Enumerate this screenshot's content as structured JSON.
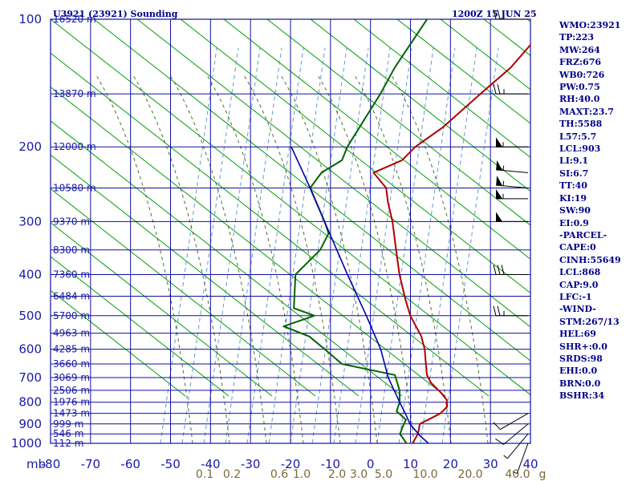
{
  "header": {
    "station": "U3921 (23921) Sounding",
    "time": "1200Z 15 JUN 25"
  },
  "colors": {
    "axes": "#1010a0",
    "temperature": "#b00000",
    "dewpoint": "#006400",
    "parcel": "#0000b0",
    "dry_adiabat": "#00a000",
    "moist_adiabat": "#888888",
    "mixing_ratio": "#6699cc",
    "dry_adiabat_dash": "#556b2f"
  },
  "indices": [
    "WMO:23921",
    "TP:223",
    "MW:264",
    "FRZ:676",
    "WB0:726",
    "PW:0.75",
    "RH:40.0",
    "MAXT:23.7",
    "TH:5588",
    "L57:5.7",
    "LCL:903",
    "LI:9.1",
    "SI:6.7",
    "TT:40",
    "KI:19",
    "SW:90",
    "EI:0.9",
    "-PARCEL-",
    "CAPE:0",
    "CINH:55649",
    "LCL:868",
    "CAP:9.0",
    "LFC:-1",
    "-WIND-",
    "STM:267/13",
    "HEL:69",
    "SHR+:0.0",
    "SRDS:98",
    "EHI:0.0",
    "BRN:0.0",
    "BSHR:34"
  ],
  "chart_data": {
    "type": "line",
    "title": "U3921 (23921) Sounding",
    "y_axis": {
      "label": "mb",
      "scale": "log",
      "range": [
        1000,
        100
      ],
      "ticks": [
        100,
        200,
        300,
        400,
        500,
        600,
        700,
        800,
        900,
        1000
      ]
    },
    "x_axis": {
      "range": [
        -80,
        40
      ],
      "ticks": [
        -80,
        -70,
        -60,
        -50,
        -40,
        -30,
        -20,
        -10,
        0,
        10,
        20,
        30,
        40
      ]
    },
    "mixing_ratio_ticks": [
      {
        "label": "0.1",
        "value": 0.1
      },
      {
        "label": "0.2",
        "value": 0.2
      },
      {
        "label": "0.6",
        "value": 0.6
      },
      {
        "label": "1.0",
        "value": 1.0
      },
      {
        "label": "2.0",
        "value": 2.0
      },
      {
        "label": "3.0",
        "value": 3.0
      },
      {
        "label": "5.0",
        "value": 5.0
      },
      {
        "label": "10.0",
        "value": 10.0
      },
      {
        "label": "20.0",
        "value": 20.0
      },
      {
        "label": "40.0",
        "value": 40.0
      }
    ],
    "mixing_ratio_unit": "g",
    "height_labels": [
      {
        "p": 100,
        "label": "16520 m"
      },
      {
        "p": 150,
        "label": "13870 m"
      },
      {
        "p": 200,
        "label": "12000 m"
      },
      {
        "p": 250,
        "label": "10580 m"
      },
      {
        "p": 300,
        "label": "9370 m"
      },
      {
        "p": 350,
        "label": "8300 m"
      },
      {
        "p": 400,
        "label": "7360 m"
      },
      {
        "p": 450,
        "label": "6484 m"
      },
      {
        "p": 500,
        "label": "5700 m"
      },
      {
        "p": 550,
        "label": "4963 m"
      },
      {
        "p": 600,
        "label": "4285 m"
      },
      {
        "p": 650,
        "label": "3660 m"
      },
      {
        "p": 700,
        "label": "3069 m"
      },
      {
        "p": 750,
        "label": "2506 m"
      },
      {
        "p": 800,
        "label": "1976 m"
      },
      {
        "p": 850,
        "label": "1473 m"
      },
      {
        "p": 900,
        "label": "999 m"
      },
      {
        "p": 950,
        "label": "546 m"
      },
      {
        "p": 1000,
        "label": "112 m"
      }
    ],
    "series": [
      {
        "key": "temperature",
        "points": [
          {
            "p": 1000,
            "t": 10.5
          },
          {
            "p": 950,
            "t": 9.5
          },
          {
            "p": 900,
            "t": 7.5
          },
          {
            "p": 850,
            "t": 10
          },
          {
            "p": 820,
            "t": 10
          },
          {
            "p": 790,
            "t": 8.2
          },
          {
            "p": 760,
            "t": 5
          },
          {
            "p": 720,
            "t": 0
          },
          {
            "p": 690,
            "t": -3
          },
          {
            "p": 650,
            "t": -6
          },
          {
            "p": 600,
            "t": -10
          },
          {
            "p": 560,
            "t": -14
          },
          {
            "p": 500,
            "t": -22
          },
          {
            "p": 460,
            "t": -27
          },
          {
            "p": 400,
            "t": -35
          },
          {
            "p": 350,
            "t": -42
          },
          {
            "p": 300,
            "t": -50
          },
          {
            "p": 270,
            "t": -56
          },
          {
            "p": 250,
            "t": -60
          },
          {
            "p": 230,
            "t": -67
          },
          {
            "p": 215,
            "t": -63
          },
          {
            "p": 200,
            "t": -63
          },
          {
            "p": 180,
            "t": -61
          },
          {
            "p": 150,
            "t": -60
          },
          {
            "p": 130,
            "t": -59
          },
          {
            "p": 110,
            "t": -60
          },
          {
            "p": 100,
            "t": -60
          }
        ]
      },
      {
        "key": "dewpoint",
        "points": [
          {
            "p": 1000,
            "t": 9
          },
          {
            "p": 950,
            "t": 5
          },
          {
            "p": 900,
            "t": 3.5
          },
          {
            "p": 880,
            "t": 3
          },
          {
            "p": 840,
            "t": -1.5
          },
          {
            "p": 800,
            "t": -3
          },
          {
            "p": 750,
            "t": -6
          },
          {
            "p": 690,
            "t": -11
          },
          {
            "p": 650,
            "t": -27
          },
          {
            "p": 600,
            "t": -35
          },
          {
            "p": 560,
            "t": -42
          },
          {
            "p": 530,
            "t": -51
          },
          {
            "p": 500,
            "t": -46
          },
          {
            "p": 480,
            "t": -53
          },
          {
            "p": 400,
            "t": -61
          },
          {
            "p": 380,
            "t": -61
          },
          {
            "p": 350,
            "t": -61
          },
          {
            "p": 320,
            "t": -63
          },
          {
            "p": 300,
            "t": -67
          },
          {
            "p": 250,
            "t": -79
          },
          {
            "p": 230,
            "t": -80
          },
          {
            "p": 215,
            "t": -78
          },
          {
            "p": 200,
            "t": -80
          },
          {
            "p": 150,
            "t": -85
          },
          {
            "p": 130,
            "t": -88
          },
          {
            "p": 100,
            "t": -92
          }
        ]
      },
      {
        "key": "parcel",
        "points": [
          {
            "p": 1000,
            "t": 14.5
          },
          {
            "p": 960,
            "t": 10.5
          },
          {
            "p": 900,
            "t": 5
          },
          {
            "p": 860,
            "t": 2
          },
          {
            "p": 800,
            "t": -3
          },
          {
            "p": 700,
            "t": -12
          },
          {
            "p": 600,
            "t": -21
          },
          {
            "p": 500,
            "t": -33
          },
          {
            "p": 400,
            "t": -48
          },
          {
            "p": 300,
            "t": -67
          },
          {
            "p": 250,
            "t": -79
          },
          {
            "p": 200,
            "t": -94
          }
        ]
      }
    ],
    "wind_barbs": [
      {
        "p": 100,
        "dir": 270,
        "spd": 25
      },
      {
        "p": 150,
        "dir": 270,
        "spd": 25
      },
      {
        "p": 200,
        "dir": 270,
        "spd": 55
      },
      {
        "p": 230,
        "dir": 275,
        "spd": 55
      },
      {
        "p": 250,
        "dir": 275,
        "spd": 55
      },
      {
        "p": 265,
        "dir": 270,
        "spd": 55
      },
      {
        "p": 300,
        "dir": 270,
        "spd": 50
      },
      {
        "p": 400,
        "dir": 270,
        "spd": 30
      },
      {
        "p": 500,
        "dir": 270,
        "spd": 25
      },
      {
        "p": 850,
        "dir": 240,
        "spd": 10
      },
      {
        "p": 900,
        "dir": 230,
        "spd": 10
      },
      {
        "p": 950,
        "dir": 220,
        "spd": 5
      },
      {
        "p": 1000,
        "dir": 200,
        "spd": 5
      }
    ]
  }
}
